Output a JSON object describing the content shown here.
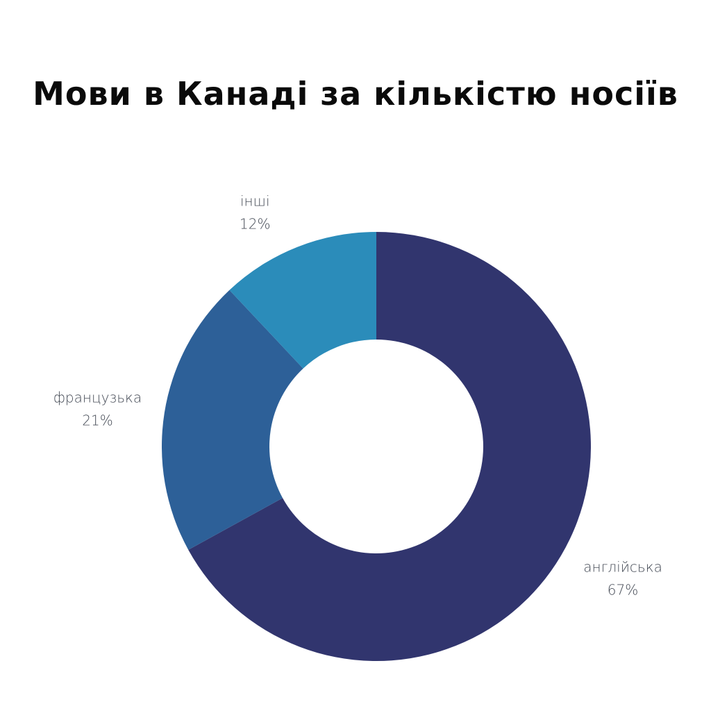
{
  "chart_data": {
    "type": "pie",
    "title": "Мови в Канаді за кількістю носіїв",
    "donut": true,
    "slices": [
      {
        "label": "англійська",
        "value": 67,
        "value_label": "67%",
        "color": "#31356e"
      },
      {
        "label": "французька",
        "value": 21,
        "value_label": "21%",
        "color": "#2d6098"
      },
      {
        "label": "інші",
        "value": 12,
        "value_label": "12%",
        "color": "#2b8cba"
      }
    ],
    "start": "12 o'clock",
    "direction": "clockwise",
    "legend": "none"
  }
}
